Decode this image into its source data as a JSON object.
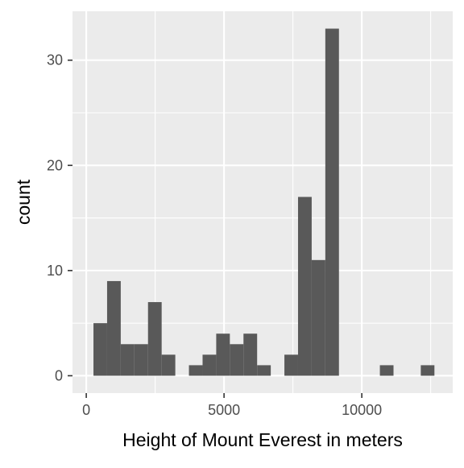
{
  "chart_data": {
    "type": "bar",
    "subtype": "histogram",
    "title": "",
    "xlabel": "Height of Mount Everest in meters",
    "ylabel": "count",
    "xlim": [
      -500,
      13300
    ],
    "ylim": [
      -1.65,
      34.65
    ],
    "x_ticks": [
      0,
      5000,
      10000
    ],
    "x_tick_labels": [
      "0",
      "5000",
      "10000"
    ],
    "y_ticks": [
      0,
      10,
      20,
      30
    ],
    "y_tick_labels": [
      "0",
      "10",
      "20",
      "30"
    ],
    "grid": true,
    "legend": "none",
    "colors": {
      "panel_background": "#ebebeb",
      "grid_major": "#ffffff",
      "bar_fill": "#595959",
      "tick_mark": "#333333"
    },
    "bins": [
      {
        "x0": 261,
        "x1": 756,
        "count": 5
      },
      {
        "x0": 756,
        "x1": 1251,
        "count": 9
      },
      {
        "x0": 1251,
        "x1": 1746,
        "count": 3
      },
      {
        "x0": 1746,
        "x1": 2241,
        "count": 3
      },
      {
        "x0": 2241,
        "x1": 2736,
        "count": 7
      },
      {
        "x0": 2736,
        "x1": 3231,
        "count": 2
      },
      {
        "x0": 3231,
        "x1": 3726,
        "count": 0
      },
      {
        "x0": 3726,
        "x1": 4221,
        "count": 1
      },
      {
        "x0": 4221,
        "x1": 4716,
        "count": 2
      },
      {
        "x0": 4716,
        "x1": 5211,
        "count": 4
      },
      {
        "x0": 5211,
        "x1": 5706,
        "count": 3
      },
      {
        "x0": 5706,
        "x1": 6201,
        "count": 4
      },
      {
        "x0": 6201,
        "x1": 6696,
        "count": 1
      },
      {
        "x0": 6696,
        "x1": 7191,
        "count": 0
      },
      {
        "x0": 7191,
        "x1": 7686,
        "count": 2
      },
      {
        "x0": 7686,
        "x1": 8181,
        "count": 17
      },
      {
        "x0": 8181,
        "x1": 8676,
        "count": 11
      },
      {
        "x0": 8676,
        "x1": 9171,
        "count": 33
      },
      {
        "x0": 9171,
        "x1": 9666,
        "count": 0
      },
      {
        "x0": 9666,
        "x1": 10161,
        "count": 0
      },
      {
        "x0": 10161,
        "x1": 10656,
        "count": 0
      },
      {
        "x0": 10656,
        "x1": 11151,
        "count": 1
      },
      {
        "x0": 11151,
        "x1": 11646,
        "count": 0
      },
      {
        "x0": 11646,
        "x1": 12141,
        "count": 0
      },
      {
        "x0": 12141,
        "x1": 12636,
        "count": 1
      }
    ]
  }
}
